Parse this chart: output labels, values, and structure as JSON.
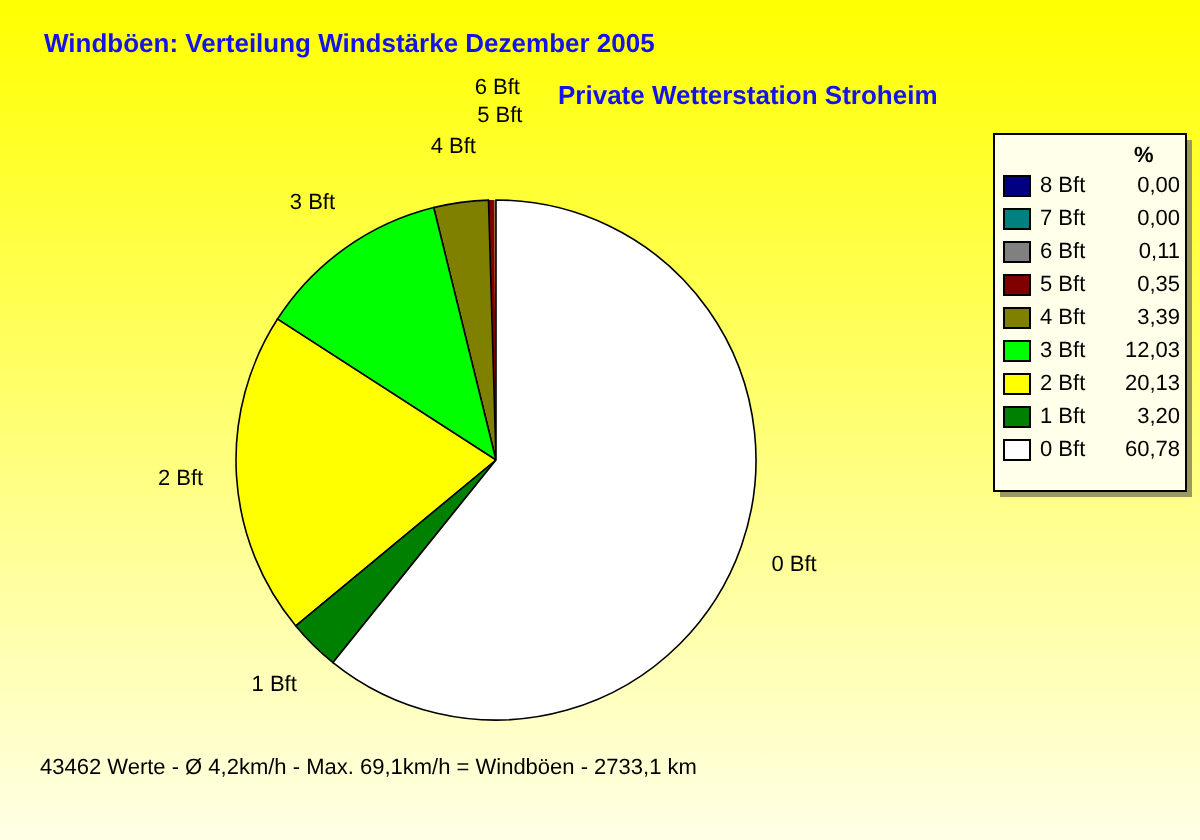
{
  "chart_data": {
    "type": "pie",
    "title": "Windböen: Verteilung Windstärke Dezember 2005",
    "subtitle": "Private Wetterstation Stroheim",
    "legend_title": "%",
    "legend": "right",
    "categories": [
      "8 Bft",
      "7 Bft",
      "6 Bft",
      "5 Bft",
      "4 Bft",
      "3 Bft",
      "2 Bft",
      "1 Bft",
      "0 Bft"
    ],
    "values": [
      0.0,
      0.0,
      0.11,
      0.35,
      3.39,
      12.03,
      20.13,
      3.2,
      60.78
    ],
    "value_labels": [
      "0,00",
      "0,00",
      "0,11",
      "0,35",
      "3,39",
      "12,03",
      "20,13",
      "3,20",
      "60,78"
    ],
    "colors": [
      "#000080",
      "#008080",
      "#808080",
      "#800000",
      "#808000",
      "#00ff00",
      "#ffff00",
      "#008000",
      "#ffffff"
    ],
    "annotations": [
      "43462 Werte - Ø 4,2km/h - Max. 69,1km/h = Windböen - 2733,1 km"
    ]
  }
}
